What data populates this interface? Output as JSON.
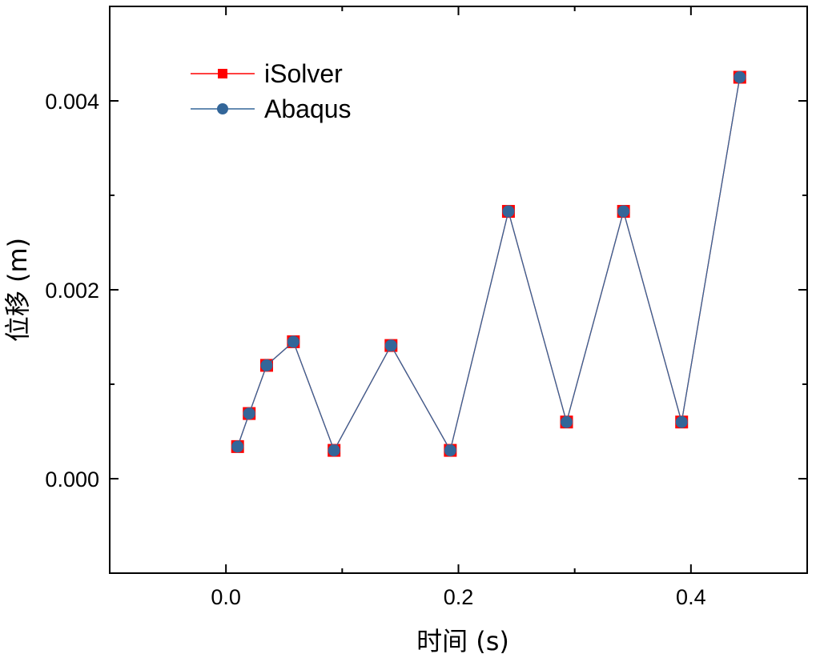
{
  "chart_data": {
    "type": "line",
    "xlabel": "时间 (s)",
    "ylabel": "位移 (m)",
    "xlim": [
      -0.1,
      0.5
    ],
    "ylim": [
      -0.001,
      0.005
    ],
    "x_ticks": [
      0.0,
      0.2,
      0.4
    ],
    "x_tick_labels": [
      "0.0",
      "0.2",
      "0.4"
    ],
    "y_ticks": [
      0.0,
      0.002,
      0.004
    ],
    "y_tick_labels": [
      "0.000",
      "0.002",
      "0.004"
    ],
    "grid": false,
    "legend_position": "top-left",
    "series": [
      {
        "name": "iSolver",
        "color": "#ff0000",
        "marker": "square",
        "x": [
          0.01,
          0.02,
          0.035,
          0.058,
          0.093,
          0.142,
          0.193,
          0.243,
          0.293,
          0.342,
          0.392,
          0.442
        ],
        "y": [
          0.00034,
          0.00069,
          0.0012,
          0.00145,
          0.0003,
          0.00141,
          0.0003,
          0.00283,
          0.0006,
          0.00283,
          0.0006,
          0.00425
        ]
      },
      {
        "name": "Abaqus",
        "color": "#336699",
        "marker": "circle",
        "x": [
          0.01,
          0.02,
          0.035,
          0.058,
          0.093,
          0.142,
          0.193,
          0.243,
          0.293,
          0.342,
          0.392,
          0.442
        ],
        "y": [
          0.00034,
          0.00069,
          0.0012,
          0.00145,
          0.0003,
          0.00141,
          0.0003,
          0.00283,
          0.0006,
          0.00283,
          0.0006,
          0.00425
        ]
      }
    ]
  }
}
